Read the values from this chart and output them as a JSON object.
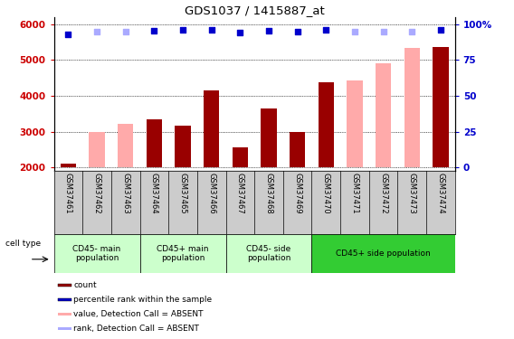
{
  "title": "GDS1037 / 1415887_at",
  "samples": [
    "GSM37461",
    "GSM37462",
    "GSM37463",
    "GSM37464",
    "GSM37465",
    "GSM37466",
    "GSM37467",
    "GSM37468",
    "GSM37469",
    "GSM37470",
    "GSM37471",
    "GSM37472",
    "GSM37473",
    "GSM37474"
  ],
  "bar_values": [
    2120,
    null,
    null,
    3340,
    3180,
    4150,
    2560,
    3660,
    3000,
    4380,
    null,
    null,
    null,
    5350
  ],
  "pink_values": [
    null,
    3000,
    3220,
    null,
    null,
    null,
    null,
    null,
    null,
    null,
    4420,
    4920,
    5340,
    null
  ],
  "blue_dots": [
    5720,
    5800,
    5800,
    5820,
    5830,
    5840,
    5760,
    5820,
    5800,
    5840,
    5800,
    5800,
    5800,
    5840
  ],
  "blue_dot_colors": [
    "#0000cc",
    "#aaaaff",
    "#aaaaff",
    "#0000cc",
    "#0000cc",
    "#0000cc",
    "#0000cc",
    "#0000cc",
    "#0000cc",
    "#0000cc",
    "#aaaaff",
    "#aaaaff",
    "#aaaaff",
    "#0000cc"
  ],
  "ylim": [
    1900,
    6200
  ],
  "y_ticks": [
    2000,
    3000,
    4000,
    5000,
    6000
  ],
  "y_right_ticks_positions": [
    2000,
    3000,
    4000,
    5000,
    6000
  ],
  "y_right_labels": [
    "0",
    "25",
    "50",
    "75",
    "100%"
  ],
  "bar_color": "#990000",
  "pink_color": "#ffaaaa",
  "bar_width": 0.55,
  "group_starts": [
    0,
    3,
    6,
    9
  ],
  "group_ends": [
    2,
    5,
    8,
    13
  ],
  "group_colors": [
    "#ccffcc",
    "#ccffcc",
    "#ccffcc",
    "#33cc33"
  ],
  "group_labels": [
    "CD45- main\npopulation",
    "CD45+ main\npopulation",
    "CD45- side\npopulation",
    "CD45+ side population"
  ],
  "legend_colors": [
    "#990000",
    "#0000cc",
    "#ffaaaa",
    "#aaaaff"
  ],
  "legend_labels": [
    "count",
    "percentile rank within the sample",
    "value, Detection Call = ABSENT",
    "rank, Detection Call = ABSENT"
  ],
  "cell_type_label": "cell type",
  "xlabel_color": "#cc0000",
  "ylabel_right_color": "#0000cc",
  "sample_bg_color": "#cccccc",
  "title_color": "#000000"
}
